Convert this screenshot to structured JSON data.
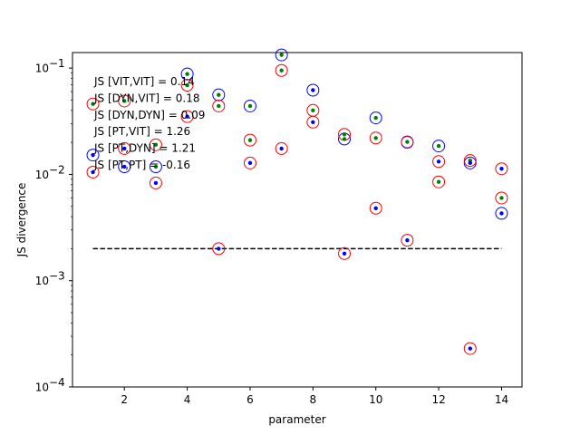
{
  "chart_data": {
    "type": "scatter",
    "xlabel": "parameter",
    "ylabel": "JS divergence",
    "yscale": "log",
    "xlim": [
      0.35,
      14.65
    ],
    "ylim": [
      0.0001,
      0.14
    ],
    "x_ticks": [
      2,
      4,
      6,
      8,
      10,
      12,
      14
    ],
    "y_ticks": [
      {
        "value": 0.0001,
        "base": "10",
        "exp": "−4"
      },
      {
        "value": 0.001,
        "base": "10",
        "exp": "−3"
      },
      {
        "value": 0.01,
        "base": "10",
        "exp": "−2"
      },
      {
        "value": 0.1,
        "base": "10",
        "exp": "−1"
      }
    ],
    "grid": false,
    "annotations": [
      "JS [VIT,VIT] = 0.14",
      "JS [DYN,VIT] = 0.18",
      "JS [DYN,DYN] = 0.09",
      "JS [PT,VIT] = 1.26",
      "JS [PT,DYN] = 1.21",
      "JS [PT,PT] = -0.16"
    ],
    "reference_line": {
      "y": 0.002,
      "x_start": 1,
      "x_end": 14,
      "style": "dashed",
      "color": "#000000"
    },
    "series": [
      {
        "marker": "blue ring",
        "edge_color": "#0000ff",
        "points": [
          [
            1,
            0.0152
          ],
          [
            2,
            0.0118
          ],
          [
            3,
            0.0118
          ],
          [
            4,
            0.088
          ],
          [
            5,
            0.056
          ],
          [
            6,
            0.044
          ],
          [
            7,
            0.133
          ],
          [
            8,
            0.062
          ],
          [
            9,
            0.0215
          ],
          [
            10,
            0.034
          ],
          [
            11,
            0.0202
          ],
          [
            12,
            0.0185
          ],
          [
            13,
            0.0128
          ],
          [
            14,
            0.0043
          ]
        ]
      },
      {
        "marker": "red ring",
        "edge_color": "#ff0000",
        "points": [
          [
            1,
            0.0105
          ],
          [
            1,
            0.046
          ],
          [
            2,
            0.0175
          ],
          [
            2,
            0.049
          ],
          [
            3,
            0.0083
          ],
          [
            3,
            0.019
          ],
          [
            4,
            0.035
          ],
          [
            4,
            0.069
          ],
          [
            5,
            0.002
          ],
          [
            5,
            0.044
          ],
          [
            6,
            0.0128
          ],
          [
            6,
            0.021
          ],
          [
            7,
            0.0175
          ],
          [
            7,
            0.095
          ],
          [
            8,
            0.031
          ],
          [
            8,
            0.04
          ],
          [
            9,
            0.0018
          ],
          [
            9,
            0.0238
          ],
          [
            10,
            0.0048
          ],
          [
            10,
            0.022
          ],
          [
            11,
            0.0024
          ],
          [
            11,
            0.02
          ],
          [
            12,
            0.0085
          ],
          [
            12,
            0.0132
          ],
          [
            13,
            0.00023
          ],
          [
            13,
            0.0135
          ],
          [
            14,
            0.006
          ],
          [
            14,
            0.0113
          ]
        ]
      },
      {
        "marker": "green dot",
        "fill_color": "#008000",
        "points": [
          [
            1,
            0.046
          ],
          [
            2,
            0.049
          ],
          [
            3,
            0.0118
          ],
          [
            3,
            0.019
          ],
          [
            4,
            0.069
          ],
          [
            4,
            0.088
          ],
          [
            5,
            0.044
          ],
          [
            5,
            0.056
          ],
          [
            6,
            0.021
          ],
          [
            6,
            0.044
          ],
          [
            7,
            0.095
          ],
          [
            7,
            0.133
          ],
          [
            8,
            0.04
          ],
          [
            9,
            0.0215
          ],
          [
            9,
            0.0238
          ],
          [
            10,
            0.022
          ],
          [
            10,
            0.034
          ],
          [
            11,
            0.0202
          ],
          [
            12,
            0.0085
          ],
          [
            12,
            0.0185
          ],
          [
            13,
            0.0135
          ],
          [
            14,
            0.006
          ]
        ]
      },
      {
        "marker": "blue dot",
        "fill_color": "#0000ff",
        "points": [
          [
            1,
            0.0105
          ],
          [
            1,
            0.0152
          ],
          [
            2,
            0.0118
          ],
          [
            2,
            0.0175
          ],
          [
            3,
            0.0083
          ],
          [
            4,
            0.035
          ],
          [
            5,
            0.002
          ],
          [
            6,
            0.0128
          ],
          [
            7,
            0.0175
          ],
          [
            8,
            0.031
          ],
          [
            8,
            0.062
          ],
          [
            9,
            0.0018
          ],
          [
            10,
            0.0048
          ],
          [
            11,
            0.0024
          ],
          [
            12,
            0.0132
          ],
          [
            13,
            0.00023
          ],
          [
            13,
            0.0128
          ],
          [
            14,
            0.0043
          ],
          [
            14,
            0.0113
          ]
        ]
      }
    ]
  }
}
